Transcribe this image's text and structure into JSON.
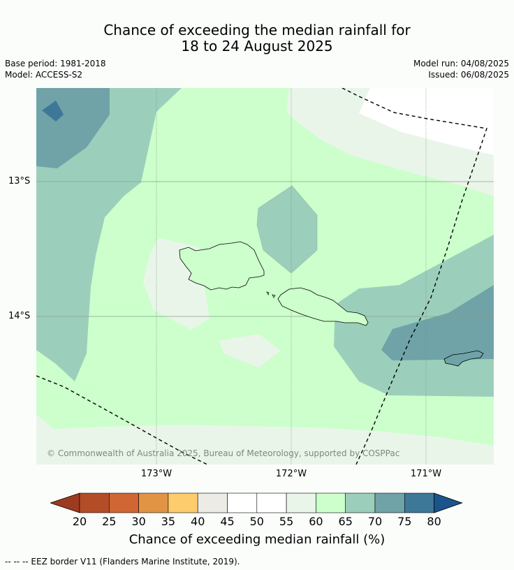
{
  "title": {
    "line1": "Chance of exceeding the median rainfall for",
    "line2": "18 to 24 August 2025"
  },
  "meta": {
    "base_period": "Base period: 1981-2018",
    "model": "Model: ACCESS-S2",
    "model_run": "Model run: 04/08/2025",
    "issued": "Issued: 06/08/2025"
  },
  "axes": {
    "lat_labels": [
      "13°S",
      "14°S"
    ],
    "lon_labels": [
      "173°W",
      "172°W",
      "171°W"
    ]
  },
  "copyright": "© Commonwealth of Australia 2025, Bureau of Meteorology, supported by COSPPac",
  "colorbar": {
    "ticks": [
      "20",
      "25",
      "30",
      "35",
      "40",
      "45",
      "50",
      "55",
      "60",
      "65",
      "70",
      "75",
      "80"
    ],
    "colors": [
      "#9c3b1f",
      "#b34d28",
      "#cf6633",
      "#e29445",
      "#fdcc6c",
      "#ecebe6",
      "#ffffff",
      "#ffffff",
      "#eaf5ea",
      "#ccffcc",
      "#9ccfbb",
      "#6fa3a8",
      "#3e7899",
      "#1b548c"
    ],
    "label": "Chance of exceeding median rainfall (%)"
  },
  "footnote": "--  --  -- EEZ border V11 (Flanders Marine Institute, 2019)."
}
